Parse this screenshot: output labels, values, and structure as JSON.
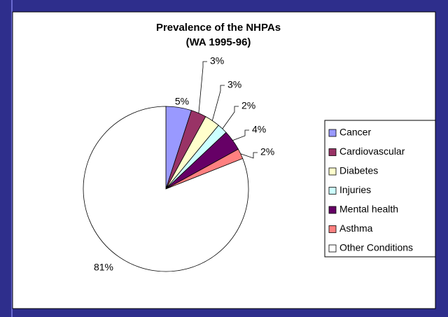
{
  "chart_data": {
    "type": "pie",
    "title": [
      "Prevalence of the NHPAs",
      "(WA 1995-96)"
    ],
    "categories": [
      "Cancer",
      "Cardiovascular",
      "Diabetes",
      "Injuries",
      "Mental health",
      "Asthma",
      "Other Conditions"
    ],
    "values": [
      5,
      3,
      3,
      2,
      4,
      2,
      81
    ],
    "value_labels": [
      "5%",
      "3%",
      "3%",
      "2%",
      "4%",
      "2%",
      "81%"
    ],
    "colors": [
      "#9999ff",
      "#993366",
      "#ffffcc",
      "#ccffff",
      "#660066",
      "#ff8080",
      "#ffffff"
    ],
    "legend": "right"
  }
}
